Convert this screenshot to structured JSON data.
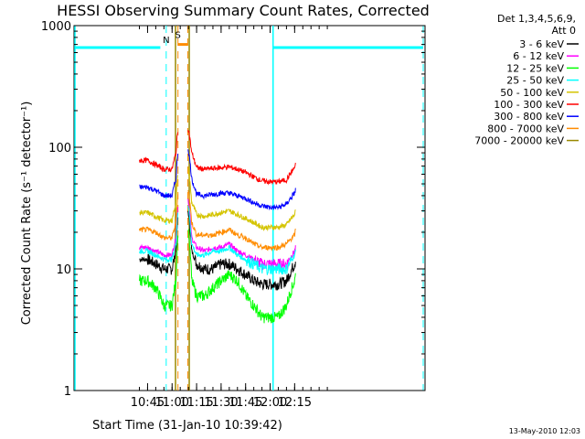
{
  "chart_data": {
    "type": "line",
    "title": "HESSI Observing Summary Count Rates, Corrected",
    "xlabel": "Start Time (31-Jan-10 10:39:42)",
    "ylabel": "Corrected Count Rate (s⁻¹ detector⁻¹)",
    "xlim_minutes": [
      10.0,
      13.58
    ],
    "ylim": [
      1,
      1000
    ],
    "yscale": "log",
    "x_ticks": [
      "10:45",
      "11:00",
      "11:15",
      "11:30",
      "11:45",
      "12:00",
      "12:15"
    ],
    "y_ticks": [
      "1",
      "10",
      "100",
      "1000"
    ],
    "legend": {
      "header": [
        "Det 1,3,4,5,6,9,",
        "Att 0"
      ],
      "placement": "right"
    },
    "series": [
      {
        "name": "3 - 6 keV",
        "color": "#000000",
        "x": [
          10.667,
          10.75,
          10.833,
          10.917,
          11.0,
          11.04,
          11.08,
          11.14,
          11.2,
          11.25,
          11.333,
          11.417,
          11.5,
          11.583,
          11.667,
          11.75,
          11.833,
          11.917,
          12.0,
          12.083,
          12.167,
          12.25,
          12.26
        ],
        "y": [
          12,
          12,
          11,
          10,
          10,
          14,
          40,
          40,
          14,
          11,
          10,
          10,
          11,
          11,
          10,
          9,
          8,
          7.5,
          7.5,
          7.5,
          8,
          11,
          12
        ]
      },
      {
        "name": "6 - 12 keV",
        "color": "#ff00ff",
        "x": [
          10.667,
          10.75,
          10.833,
          10.917,
          11.0,
          11.04,
          11.08,
          11.14,
          11.2,
          11.25,
          11.333,
          11.417,
          11.5,
          11.583,
          11.667,
          11.75,
          11.833,
          11.917,
          12.0,
          12.083,
          12.167,
          12.25,
          12.26
        ],
        "y": [
          15,
          15,
          14,
          13,
          13,
          18,
          50,
          50,
          18,
          15,
          14,
          15,
          15,
          16,
          14,
          13,
          12,
          11,
          11,
          11,
          11,
          14,
          15
        ]
      },
      {
        "name": "12 - 25 keV",
        "color": "#00ff00",
        "x": [
          10.667,
          10.75,
          10.833,
          10.917,
          11.0,
          11.04,
          11.08,
          11.14,
          11.2,
          11.25,
          11.333,
          11.417,
          11.5,
          11.583,
          11.667,
          11.75,
          11.833,
          11.917,
          12.0,
          12.083,
          12.167,
          12.25,
          12.26
        ],
        "y": [
          8,
          8,
          7,
          5,
          5,
          8,
          30,
          30,
          8,
          6,
          6,
          7,
          8,
          9,
          8,
          6,
          5,
          4,
          4,
          4,
          5,
          8,
          9
        ]
      },
      {
        "name": "25 - 50 keV",
        "color": "#00ffff",
        "x": [
          10.667,
          10.75,
          10.833,
          10.917,
          11.0,
          11.04,
          11.08,
          11.14,
          11.2,
          11.25,
          11.333,
          11.417,
          11.5,
          11.583,
          11.667,
          11.75,
          11.833,
          11.917,
          12.0,
          12.083,
          12.167,
          12.25,
          12.26
        ],
        "y": [
          14,
          14,
          13,
          12,
          12,
          16,
          45,
          45,
          16,
          13,
          13,
          14,
          14,
          15,
          13,
          12,
          11,
          10,
          10,
          10,
          10,
          13,
          14
        ]
      },
      {
        "name": "50 - 100 keV",
        "color": "#d4c400",
        "x": [
          10.667,
          10.75,
          10.833,
          10.917,
          11.0,
          11.04,
          11.08,
          11.14,
          11.2,
          11.25,
          11.333,
          11.417,
          11.5,
          11.583,
          11.667,
          11.75,
          11.833,
          11.917,
          12.0,
          12.083,
          12.167,
          12.25,
          12.26
        ],
        "y": [
          29,
          29,
          27,
          25,
          25,
          35,
          90,
          90,
          35,
          28,
          27,
          28,
          29,
          30,
          28,
          26,
          24,
          22,
          22,
          22,
          23,
          28,
          30
        ]
      },
      {
        "name": "100 - 300 keV",
        "color": "#ff0000",
        "x": [
          10.667,
          10.75,
          10.833,
          10.917,
          11.0,
          11.04,
          11.08,
          11.14,
          11.2,
          11.25,
          11.333,
          11.417,
          11.5,
          11.583,
          11.667,
          11.75,
          11.833,
          11.917,
          12.0,
          12.083,
          12.167,
          12.25,
          12.26
        ],
        "y": [
          78,
          78,
          72,
          66,
          66,
          90,
          190,
          180,
          90,
          68,
          66,
          67,
          68,
          69,
          66,
          62,
          57,
          53,
          52,
          52,
          54,
          68,
          74
        ]
      },
      {
        "name": "300 - 800 keV",
        "color": "#0000ff",
        "x": [
          10.667,
          10.75,
          10.833,
          10.917,
          11.0,
          11.04,
          11.08,
          11.14,
          11.2,
          11.25,
          11.333,
          11.417,
          11.5,
          11.583,
          11.667,
          11.75,
          11.833,
          11.917,
          12.0,
          12.083,
          12.167,
          12.25,
          12.26
        ],
        "y": [
          47,
          47,
          44,
          40,
          40,
          55,
          130,
          125,
          55,
          41,
          40,
          41,
          42,
          42,
          40,
          38,
          35,
          33,
          32,
          32,
          34,
          42,
          45
        ]
      },
      {
        "name": "800 - 7000 keV",
        "color": "#ff8c00",
        "x": [
          10.667,
          10.75,
          10.833,
          10.917,
          11.0,
          11.04,
          11.08,
          11.14,
          11.2,
          11.25,
          11.333,
          11.417,
          11.5,
          11.583,
          11.667,
          11.75,
          11.833,
          11.917,
          12.0,
          12.083,
          12.167,
          12.25,
          12.26
        ],
        "y": [
          21,
          21,
          20,
          18,
          18,
          24,
          60,
          60,
          24,
          19,
          19,
          19,
          20,
          21,
          19,
          18,
          16,
          15,
          15,
          15,
          16,
          19,
          21
        ]
      },
      {
        "name": "7000 - 20000 keV",
        "color": "#998800",
        "x": [
          10.667,
          10.75,
          10.833,
          10.917,
          11.0,
          11.04,
          11.08,
          11.14,
          11.2,
          11.25,
          11.333,
          11.417,
          11.5,
          11.583,
          11.667,
          11.75,
          11.833,
          11.917,
          12.0,
          12.083,
          12.167,
          12.25,
          12.26
        ],
        "y": [
          1,
          1,
          1,
          1,
          1,
          1,
          1,
          1,
          1,
          1,
          1,
          1,
          1,
          1,
          1,
          1,
          1,
          1,
          1,
          1,
          1,
          1,
          1
        ]
      }
    ],
    "annotations": [
      {
        "label": "N",
        "color": "#00ffff"
      },
      {
        "label": "S",
        "color": "#ff8c00"
      }
    ]
  },
  "footer": {
    "timestamp": "13-May-2010 12:03"
  },
  "colors": {
    "night": "#00ffff",
    "saa": "#ff8c00",
    "attenuator": "#998800"
  }
}
